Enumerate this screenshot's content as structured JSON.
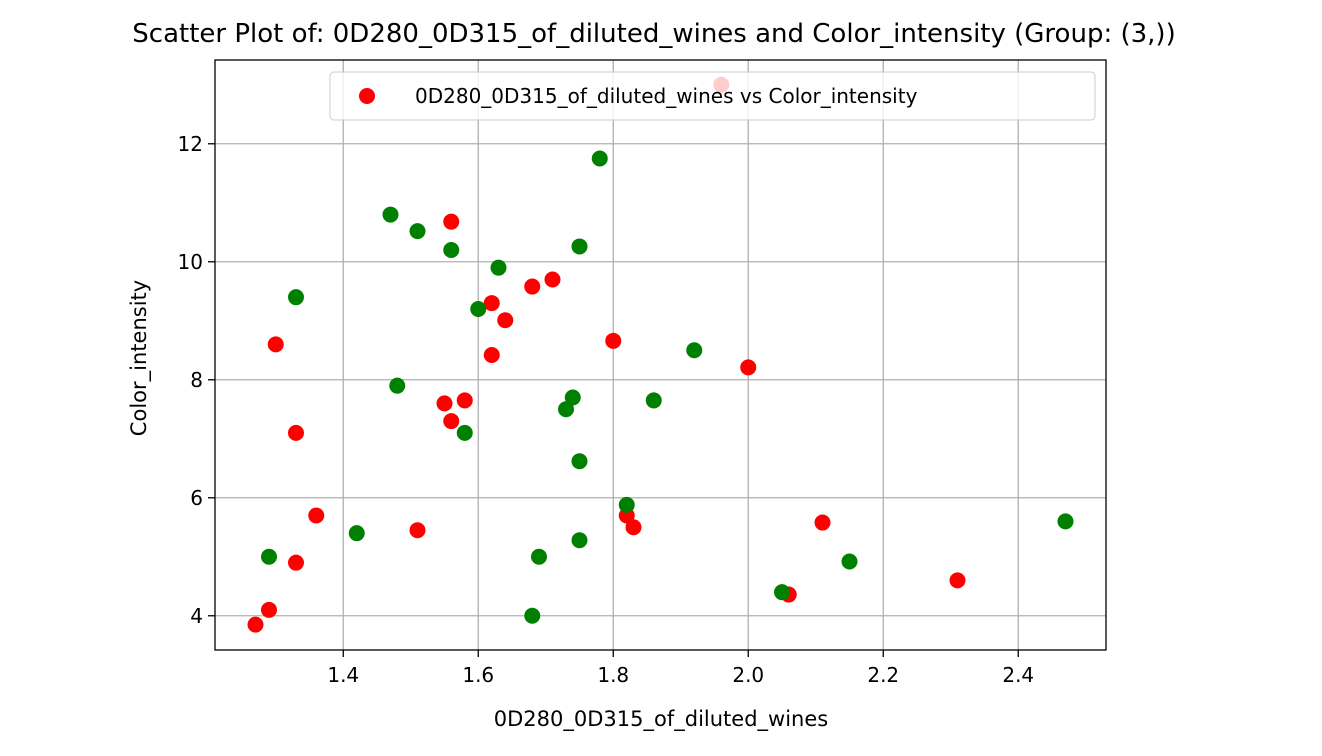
{
  "chart_data": {
    "type": "scatter",
    "title": "Scatter Plot of: 0D280_0D315_of_diluted_wines and Color_intensity (Group: (3,))",
    "xlabel": "0D280_0D315_of_diluted_wines",
    "ylabel": "Color_intensity",
    "xlim": [
      1.21,
      2.53
    ],
    "ylim": [
      3.42,
      13.42
    ],
    "xticks": [
      1.4,
      1.6,
      1.8,
      2.0,
      2.2,
      2.4
    ],
    "xtick_labels": [
      "1.4",
      "1.6",
      "1.8",
      "2.0",
      "2.2",
      "2.4"
    ],
    "yticks": [
      4,
      6,
      8,
      10,
      12
    ],
    "ytick_labels": [
      "4",
      "6",
      "8",
      "10",
      "12"
    ],
    "grid": true,
    "legend_position": "top-right",
    "series": [
      {
        "name": "0D280_0D315_of_diluted_wines vs Color_intensity",
        "color": "#ff0000",
        "in_legend": true,
        "points": [
          [
            1.27,
            3.85
          ],
          [
            1.29,
            4.1
          ],
          [
            1.3,
            8.6
          ],
          [
            1.33,
            4.9
          ],
          [
            1.33,
            7.1
          ],
          [
            1.36,
            5.7
          ],
          [
            1.51,
            5.45
          ],
          [
            1.55,
            7.6
          ],
          [
            1.56,
            7.3
          ],
          [
            1.56,
            10.68
          ],
          [
            1.58,
            7.65
          ],
          [
            1.62,
            9.3
          ],
          [
            1.62,
            8.42
          ],
          [
            1.64,
            9.01
          ],
          [
            1.68,
            9.58
          ],
          [
            1.71,
            9.7
          ],
          [
            1.8,
            8.66
          ],
          [
            1.82,
            5.7
          ],
          [
            1.83,
            5.5
          ],
          [
            1.96,
            13.0
          ],
          [
            2.0,
            8.21
          ],
          [
            2.06,
            4.36
          ],
          [
            2.11,
            5.58
          ],
          [
            2.31,
            4.6
          ]
        ]
      },
      {
        "name": "",
        "color": "#008000",
        "in_legend": false,
        "points": [
          [
            1.29,
            5.0
          ],
          [
            1.33,
            9.4
          ],
          [
            1.42,
            5.4
          ],
          [
            1.47,
            10.8
          ],
          [
            1.48,
            7.9
          ],
          [
            1.51,
            10.52
          ],
          [
            1.56,
            10.2
          ],
          [
            1.58,
            7.1
          ],
          [
            1.6,
            9.2
          ],
          [
            1.63,
            9.9
          ],
          [
            1.68,
            4.0
          ],
          [
            1.69,
            5.0
          ],
          [
            1.73,
            7.5
          ],
          [
            1.74,
            7.7
          ],
          [
            1.75,
            10.26
          ],
          [
            1.75,
            6.62
          ],
          [
            1.75,
            5.28
          ],
          [
            1.78,
            11.75
          ],
          [
            1.82,
            5.88
          ],
          [
            1.86,
            7.65
          ],
          [
            1.92,
            8.5
          ],
          [
            2.05,
            4.4
          ],
          [
            2.15,
            4.92
          ],
          [
            2.47,
            5.6
          ]
        ]
      }
    ]
  }
}
